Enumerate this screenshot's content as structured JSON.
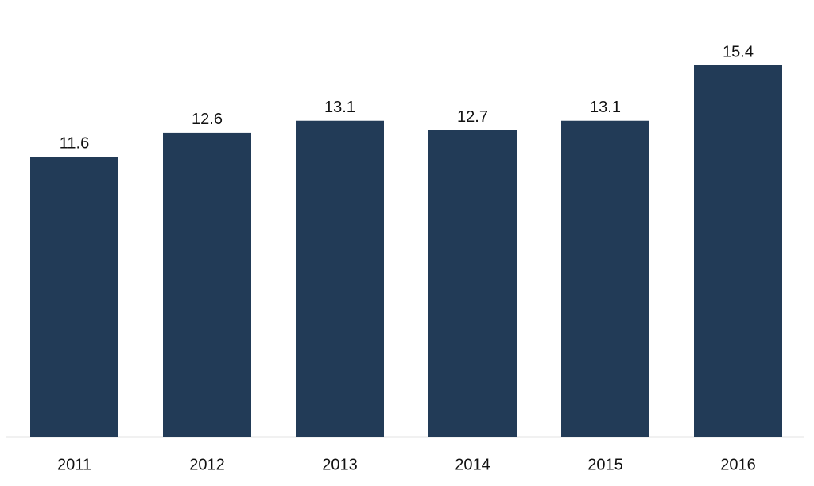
{
  "chart_data": {
    "type": "bar",
    "categories": [
      "2011",
      "2012",
      "2013",
      "2014",
      "2015",
      "2016"
    ],
    "values": [
      11.6,
      12.6,
      13.1,
      12.7,
      13.1,
      15.4
    ],
    "color": "#223b57"
  }
}
